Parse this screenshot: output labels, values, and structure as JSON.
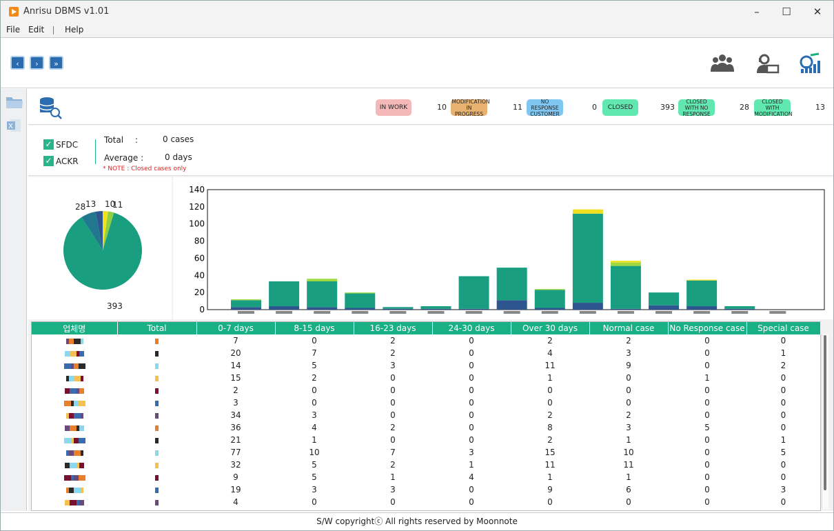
{
  "app": {
    "title": "Anrisu DBMS v1.01"
  },
  "menu": {
    "file": "File",
    "edit": "Edit",
    "help": "Help"
  },
  "nav": {
    "prev": "‹",
    "next": "›",
    "last": "»"
  },
  "status": [
    {
      "label": "IN WORK",
      "count": "10",
      "color": "#f5b8b8"
    },
    {
      "label": "MODIFICATION IN PROGRESS",
      "count": "11",
      "color": "#e8b270"
    },
    {
      "label": "NO RESPONSE CUSTOMER",
      "count": "0",
      "color": "#7fc6f0"
    },
    {
      "label": "CLOSED",
      "count": "393",
      "color": "#61e8b0"
    },
    {
      "label": "CLOSED WITH NO RESPONSE",
      "count": "28",
      "color": "#61e8b0"
    },
    {
      "label": "CLOSED WITH MODIFICATION",
      "count": "13",
      "color": "#61e8b0"
    }
  ],
  "filters": {
    "sfdc": "SFDC",
    "ackr": "ACKR"
  },
  "summary": {
    "total_label": "Total",
    "colon": ":",
    "total_value": "0 cases",
    "avg_label": "Average :",
    "avg_value": "0 days",
    "note": "* NOTE : Closed cases only"
  },
  "pie": {
    "slices": [
      {
        "value": 393,
        "color": "#1a9e80"
      },
      {
        "value": 28,
        "color": "#21788e"
      },
      {
        "value": 13,
        "color": "#2d5690"
      },
      {
        "value": 10,
        "color": "#f0e020"
      },
      {
        "value": 11,
        "color": "#8ed040"
      }
    ],
    "labels": {
      "main": "393",
      "l28": "28",
      "l13": "13",
      "l10": "10",
      "l11": "11"
    }
  },
  "chart_data": {
    "type": "bar",
    "ylim": [
      0,
      140
    ],
    "yticks": [
      "0",
      "20",
      "40",
      "60",
      "80",
      "100",
      "120",
      "140"
    ],
    "categories": [
      "",
      "",
      "",
      "",
      "",
      "",
      "",
      "",
      "",
      "",
      "",
      "",
      "",
      "",
      ""
    ],
    "series": [
      {
        "values": [
          3,
          4,
          3,
          2,
          1,
          1,
          1,
          11,
          2,
          8,
          1,
          5,
          4,
          1,
          0
        ],
        "color": "#2d5690"
      },
      {
        "values": [
          8,
          29,
          30,
          17,
          2,
          3,
          38,
          38,
          21,
          104,
          50,
          15,
          30,
          3,
          0
        ],
        "color": "#1a9e80"
      },
      {
        "values": [
          1,
          0,
          3,
          1,
          0,
          0,
          0,
          0,
          1,
          0,
          4,
          0,
          0,
          0,
          0
        ],
        "color": "#a0d840"
      },
      {
        "values": [
          0,
          0,
          0,
          0,
          0,
          0,
          0,
          0,
          0,
          5,
          2,
          0,
          1,
          0,
          0
        ],
        "color": "#f0e020"
      }
    ]
  },
  "table": {
    "headers": [
      "업체명",
      "Total",
      "0-7 days",
      "8-15 days",
      "16-23 days",
      "24-30 days",
      "Over 30 days",
      "Normal case",
      "No Response case",
      "Special case"
    ],
    "rows": [
      [
        "7",
        "0",
        "2",
        "0",
        "2",
        "2",
        "0",
        "0"
      ],
      [
        "20",
        "7",
        "2",
        "0",
        "4",
        "3",
        "0",
        "1"
      ],
      [
        "14",
        "5",
        "3",
        "0",
        "11",
        "9",
        "0",
        "2"
      ],
      [
        "15",
        "2",
        "0",
        "0",
        "1",
        "0",
        "1",
        "0"
      ],
      [
        "2",
        "0",
        "0",
        "0",
        "0",
        "0",
        "0",
        "0"
      ],
      [
        "3",
        "0",
        "0",
        "0",
        "0",
        "0",
        "0",
        "0"
      ],
      [
        "34",
        "3",
        "0",
        "0",
        "2",
        "2",
        "0",
        "0"
      ],
      [
        "36",
        "4",
        "2",
        "0",
        "8",
        "3",
        "5",
        "0"
      ],
      [
        "21",
        "1",
        "0",
        "0",
        "2",
        "1",
        "0",
        "1"
      ],
      [
        "77",
        "10",
        "7",
        "3",
        "15",
        "10",
        "0",
        "5"
      ],
      [
        "32",
        "5",
        "2",
        "1",
        "11",
        "11",
        "0",
        "0"
      ],
      [
        "9",
        "5",
        "1",
        "4",
        "1",
        "1",
        "0",
        "0"
      ],
      [
        "19",
        "3",
        "3",
        "0",
        "9",
        "6",
        "0",
        "3"
      ],
      [
        "4",
        "0",
        "0",
        "0",
        "0",
        "0",
        "0",
        "0"
      ]
    ]
  },
  "footer": "S/W copyrightⓒ All rights reserved by Moonnote"
}
